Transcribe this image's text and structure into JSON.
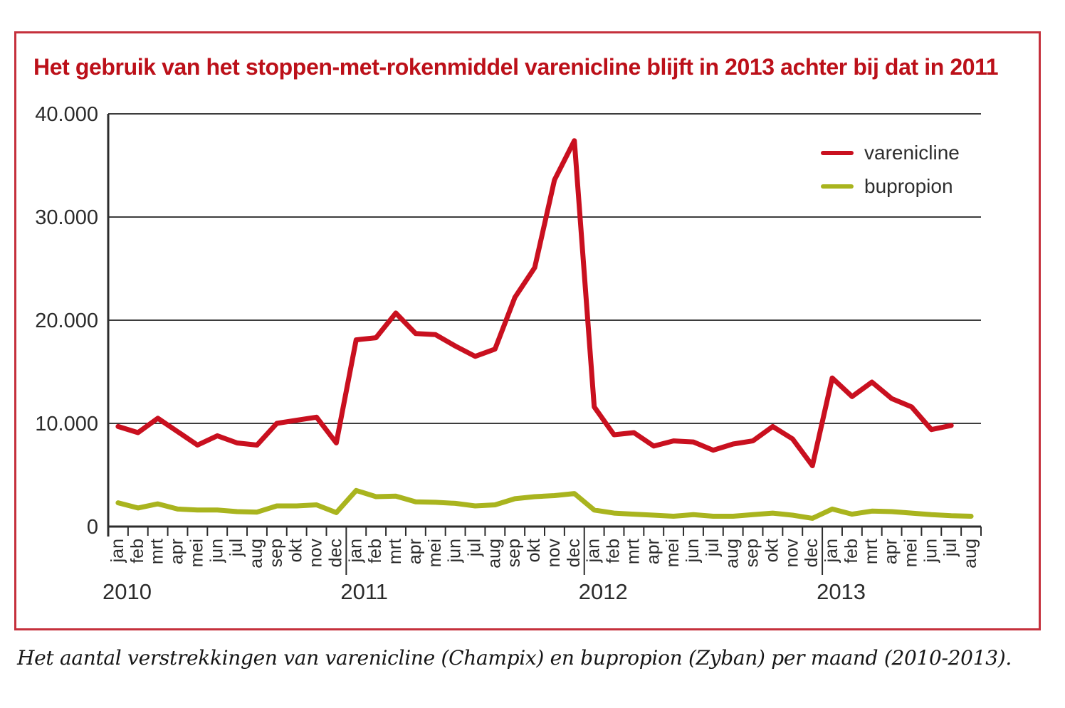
{
  "title": "Het gebruik van het stoppen-met-rokenmiddel varenicline blijft in 2013 achter bij dat in 2011",
  "caption": "Het aantal verstrekkingen van varenicline (Champix) en bupropion (Zyban) per maand (2010-2013).",
  "legend": [
    {
      "label": "varenicline",
      "color": "#c9101f"
    },
    {
      "label": "bupropion",
      "color": "#a9b41e"
    }
  ],
  "colors": {
    "accent_red": "#c9101f",
    "title_red": "#bc1019",
    "border_red": "#c5303c",
    "olive_green": "#a9b41e",
    "grid_gray": "#3d3d3d",
    "text_dark": "#2b2b2b"
  },
  "chart_data": {
    "type": "line",
    "title": "Het gebruik van het stoppen-met-rokenmiddel varenicline blijft in 2013 achter bij dat in 2011",
    "xlabel": "",
    "ylabel": "",
    "ylim": [
      0,
      40000
    ],
    "grid": true,
    "legend_position": "top-right",
    "x_months": [
      "jan",
      "feb",
      "mrt",
      "apr",
      "mei",
      "jun",
      "jul",
      "aug",
      "sep",
      "okt",
      "nov",
      "dec",
      "jan",
      "feb",
      "mrt",
      "apr",
      "mei",
      "jun",
      "jul",
      "aug",
      "sep",
      "okt",
      "nov",
      "dec",
      "jan",
      "feb",
      "mrt",
      "apr",
      "mei",
      "jun",
      "jul",
      "aug",
      "sep",
      "okt",
      "nov",
      "dec",
      "jan",
      "feb",
      "mrt",
      "apr",
      "mei",
      "jun",
      "jul",
      "aug"
    ],
    "years": [
      {
        "label": "2010",
        "start_index": 0
      },
      {
        "label": "2011",
        "start_index": 12
      },
      {
        "label": "2012",
        "start_index": 24
      },
      {
        "label": "2013",
        "start_index": 36
      }
    ],
    "y_ticks": [
      {
        "value": 40000,
        "label": "40.000"
      },
      {
        "value": 30000,
        "label": "30.000"
      },
      {
        "value": 20000,
        "label": "20.000"
      },
      {
        "value": 10000,
        "label": "10.000"
      },
      {
        "value": 0,
        "label": "0"
      }
    ],
    "series": [
      {
        "name": "varenicline",
        "color": "#c9101f",
        "values": [
          9700,
          9100,
          10500,
          9200,
          7900,
          8800,
          8100,
          7900,
          10000,
          10300,
          10600,
          8100,
          18100,
          18300,
          20700,
          18700,
          18600,
          17500,
          16500,
          17200,
          22200,
          25100,
          33600,
          37400,
          11600,
          8900,
          9100,
          7800,
          8300,
          8200,
          7400,
          8000,
          8300,
          9700,
          8500,
          5900,
          14400,
          12600,
          14000,
          12400,
          11600,
          9400,
          9800,
          null
        ]
      },
      {
        "name": "bupropion",
        "color": "#a9b41e",
        "values": [
          2300,
          1800,
          2200,
          1700,
          1600,
          1600,
          1450,
          1400,
          2000,
          2000,
          2100,
          1350,
          3500,
          2900,
          2950,
          2400,
          2350,
          2250,
          2000,
          2100,
          2700,
          2900,
          3000,
          3200,
          1600,
          1300,
          1200,
          1100,
          1000,
          1150,
          1000,
          1000,
          1150,
          1300,
          1100,
          800,
          1700,
          1200,
          1500,
          1450,
          1300,
          1150,
          1050,
          1000
        ]
      }
    ]
  }
}
